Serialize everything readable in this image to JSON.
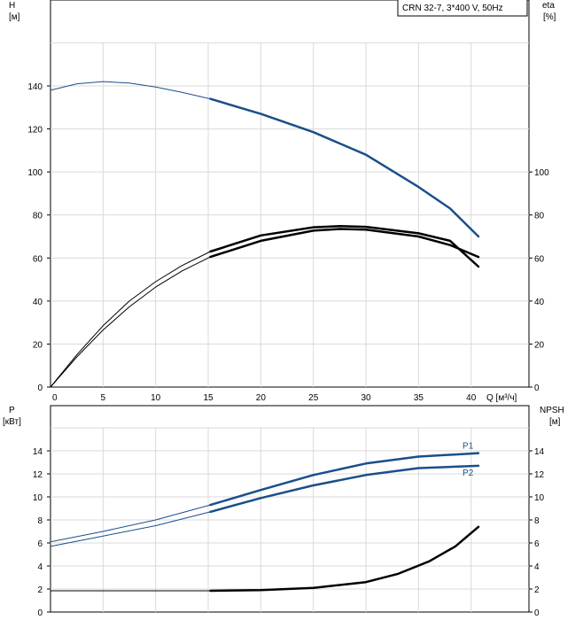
{
  "chart_data": [
    {
      "type": "line",
      "model_label": "CRN 32-7, 3*400 V, 50Hz",
      "left_axis": {
        "title": "H",
        "unit": "[м]",
        "ticks": [
          0,
          20,
          40,
          60,
          80,
          100,
          120,
          140
        ],
        "range": [
          0,
          180
        ]
      },
      "right_axis": {
        "title": "eta",
        "unit": "[%]",
        "ticks": [
          0,
          20,
          40,
          60,
          80,
          100
        ],
        "range": [
          0,
          180
        ]
      },
      "x_axis": {
        "title": "Q [м³/ч]",
        "ticks": [
          0,
          5,
          10,
          15,
          20,
          25,
          30,
          35,
          40
        ],
        "range": [
          0,
          45.5
        ]
      },
      "grid": true,
      "series": [
        {
          "id": "head",
          "color": "#1a4f8a",
          "extrapolated_until": 15.2,
          "points": [
            [
              0,
              138
            ],
            [
              2.5,
              141
            ],
            [
              5,
              142
            ],
            [
              7.5,
              141.3
            ],
            [
              10,
              139.5
            ],
            [
              12.5,
              137
            ],
            [
              15.2,
              134
            ],
            [
              20,
              127
            ],
            [
              25,
              118.5
            ],
            [
              30,
              108
            ],
            [
              35,
              93
            ],
            [
              38,
              83
            ],
            [
              40.7,
              70
            ]
          ]
        },
        {
          "id": "eta-upper",
          "color": "#000000",
          "extrapolated_until": 15.2,
          "points": [
            [
              0,
              0
            ],
            [
              2.5,
              14
            ],
            [
              5,
              26.5
            ],
            [
              7.5,
              37.3
            ],
            [
              10,
              46.5
            ],
            [
              12.5,
              54
            ],
            [
              15.2,
              60.5
            ],
            [
              20,
              68
            ],
            [
              25,
              72.7
            ],
            [
              27.5,
              73.5
            ],
            [
              30,
              73.2
            ],
            [
              35,
              70
            ],
            [
              38,
              66
            ],
            [
              40.7,
              60.5
            ]
          ]
        },
        {
          "id": "eta-lower",
          "color": "#000000",
          "extrapolated_until": 15.2,
          "points": [
            [
              0,
              0
            ],
            [
              2.5,
              15
            ],
            [
              5,
              28.5
            ],
            [
              7.5,
              40
            ],
            [
              10,
              49
            ],
            [
              12.5,
              56.5
            ],
            [
              15.2,
              63
            ],
            [
              20,
              70.5
            ],
            [
              25,
              74.3
            ],
            [
              27.5,
              74.8
            ],
            [
              30,
              74.5
            ],
            [
              35,
              71.5
            ],
            [
              38,
              68
            ],
            [
              40.7,
              56
            ]
          ]
        }
      ]
    },
    {
      "type": "line",
      "left_axis": {
        "title": "P",
        "unit": "[кВт]",
        "ticks": [
          0,
          2,
          4,
          6,
          8,
          10,
          12,
          14
        ],
        "range": [
          0,
          16
        ]
      },
      "right_axis": {
        "title": "NPSH",
        "unit": "[м]",
        "ticks": [
          0,
          2,
          4,
          6,
          8,
          10,
          12,
          14
        ],
        "range": [
          0,
          16
        ]
      },
      "x_axis": {
        "range": [
          0,
          45.5
        ]
      },
      "grid": true,
      "series": [
        {
          "id": "p1",
          "name": "P1",
          "color": "#1a4f8a",
          "extrapolated_until": 15.2,
          "points": [
            [
              0,
              6.1
            ],
            [
              5,
              7.0
            ],
            [
              10,
              8.0
            ],
            [
              15.2,
              9.3
            ],
            [
              20,
              10.6
            ],
            [
              25,
              11.9
            ],
            [
              30,
              12.9
            ],
            [
              35,
              13.5
            ],
            [
              40.7,
              13.8
            ]
          ]
        },
        {
          "id": "p2",
          "name": "P2",
          "color": "#1a4f8a",
          "extrapolated_until": 15.2,
          "points": [
            [
              0,
              5.7
            ],
            [
              5,
              6.6
            ],
            [
              10,
              7.5
            ],
            [
              15.2,
              8.7
            ],
            [
              20,
              9.9
            ],
            [
              25,
              11.0
            ],
            [
              30,
              11.9
            ],
            [
              35,
              12.5
            ],
            [
              40.7,
              12.7
            ]
          ]
        },
        {
          "id": "npsh",
          "color": "#000000",
          "extrapolated_until": 15.2,
          "points": [
            [
              0,
              1.85
            ],
            [
              5,
              1.85
            ],
            [
              10,
              1.85
            ],
            [
              15.2,
              1.85
            ],
            [
              20,
              1.9
            ],
            [
              25,
              2.1
            ],
            [
              30,
              2.6
            ],
            [
              33,
              3.3
            ],
            [
              36,
              4.4
            ],
            [
              38.5,
              5.7
            ],
            [
              40.7,
              7.4
            ]
          ]
        }
      ]
    }
  ]
}
